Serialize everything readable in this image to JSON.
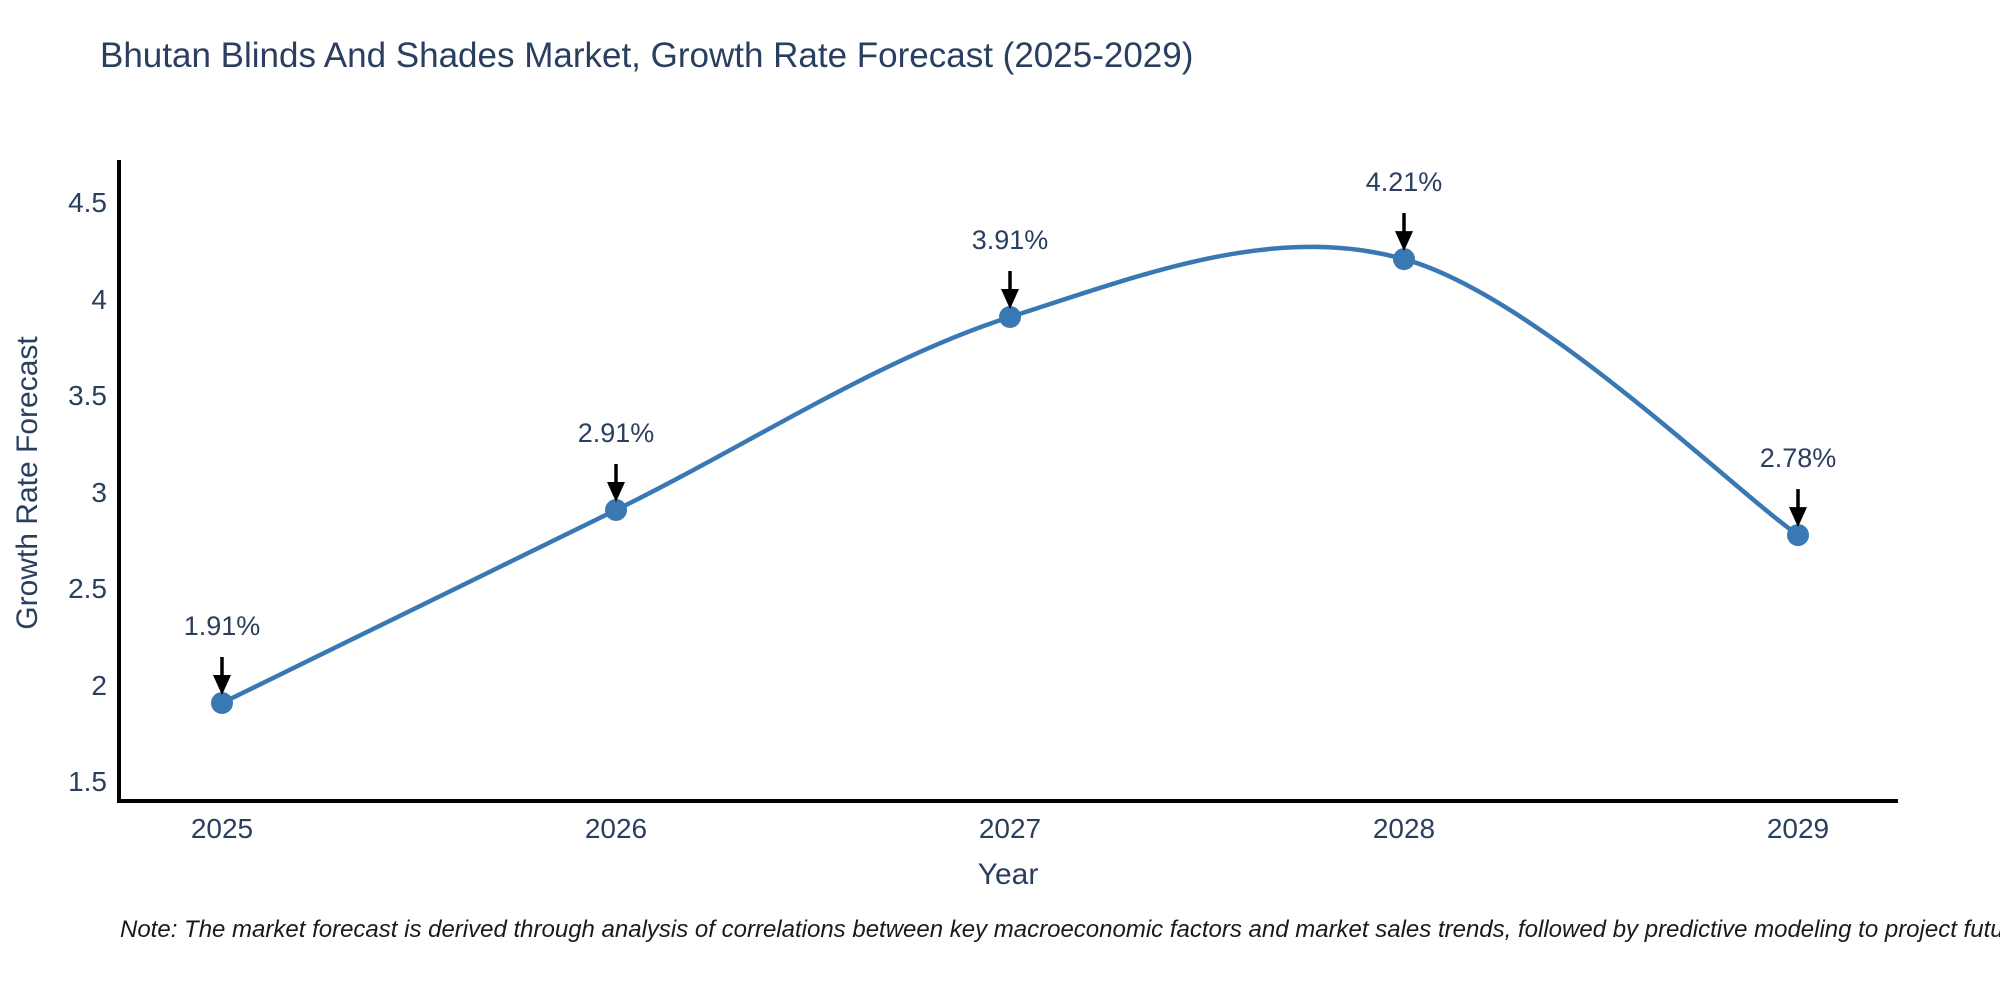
{
  "title": "Bhutan Blinds And Shades Market, Growth Rate Forecast (2025-2029)",
  "note": "Note: The market forecast is derived through analysis of correlations between key macroeconomic factors and market sales trends, followed by predictive modeling to project future sales",
  "chart_data": {
    "type": "line",
    "title": "Bhutan Blinds And Shades Market, Growth Rate Forecast (2025-2029)",
    "xlabel": "Year",
    "ylabel": "Growth Rate Forecast",
    "categories": [
      "2025",
      "2026",
      "2027",
      "2028",
      "2029"
    ],
    "x": [
      2025,
      2026,
      2027,
      2028,
      2029
    ],
    "values": [
      1.91,
      2.91,
      3.91,
      4.21,
      2.78
    ],
    "point_labels": [
      "1.91%",
      "2.91%",
      "3.91%",
      "4.21%",
      "2.78%"
    ],
    "y_ticks": [
      4.5,
      4,
      3.5,
      3,
      2.5,
      2,
      1.5
    ],
    "y_tick_labels": [
      "4.5",
      "4",
      "3.5",
      "3",
      "2.5",
      "2",
      "1.5"
    ],
    "ylim": [
      1.41,
      4.72
    ],
    "xlim": [
      2024.74,
      2029.26
    ],
    "line_shape": "spline",
    "grid": false,
    "legend_position": "none",
    "line_color": "#3a78b3",
    "marker_color": "#3a78b3",
    "axis_color": "#000000",
    "text_color": "#2a3f5f",
    "annotation_arrow_color": "#000000",
    "background_color": "#ffffff"
  }
}
